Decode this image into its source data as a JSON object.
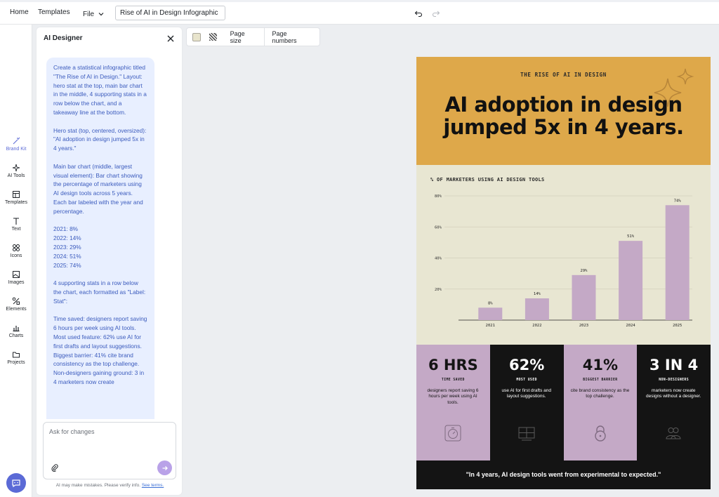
{
  "topbar": {
    "home": "Home",
    "templates": "Templates",
    "file": "File",
    "doc_title": "Rise of AI in Design Infographic",
    "undo_icon": "undo-icon",
    "redo_icon": "redo-icon"
  },
  "rail": {
    "items": [
      {
        "label": "Brand Kit",
        "icon": "magic-wand-icon"
      },
      {
        "label": "AI Tools",
        "icon": "sparkles-icon"
      },
      {
        "label": "Templates",
        "icon": "templates-icon"
      },
      {
        "label": "Text",
        "icon": "text-icon"
      },
      {
        "label": "Icons",
        "icon": "icons-icon"
      },
      {
        "label": "Images",
        "icon": "image-icon"
      },
      {
        "label": "Elements",
        "icon": "elements-icon"
      },
      {
        "label": "Charts",
        "icon": "chart-icon"
      },
      {
        "label": "Projects",
        "icon": "folder-icon"
      }
    ]
  },
  "panel": {
    "title": "AI Designer",
    "prompt": "Create a statistical infographic titled \"The Rise of AI in Design.\" Layout: hero stat at the top, main bar chart in the middle, 4 supporting stats in a row below the chart, and a takeaway line at the bottom.\n\nHero stat (top, centered, oversized): \"AI adoption in design jumped 5x in 4 years.\"\n\nMain bar chart (middle, largest visual element): Bar chart showing the percentage of marketers using AI design tools across 5 years. Each bar labeled with the year and percentage.\n\n2021: 8%\n2022: 14%\n2023: 29%\n2024: 51%\n2025: 74%\n\n4 supporting stats in a row below the chart, each formatted as \"Label: Stat\":\n\nTime saved: designers report saving 6 hours per week using AI tools.\nMost used feature: 62% use AI for first drafts and layout suggestions.\nBiggest barrier: 41% cite brand consistency as the top challenge.\nNon-designers gaining ground: 3 in 4 marketers now create",
    "ask_placeholder": "Ask for changes",
    "disclaimer": "AI may make mistakes. Please verify info.",
    "disclaimer_link": "See terms."
  },
  "canvas_toolbar": {
    "page_size": "Page size",
    "page_numbers": "Page numbers"
  },
  "infographic": {
    "eyebrow": "THE RISE OF AI IN DESIGN",
    "headline_line1": "AI adoption in design",
    "headline_line2": "jumped 5x in 4 years.",
    "chart_title": "% OF MARKETERS USING AI DESIGN TOOLS",
    "stats": [
      {
        "big": "6 HRS",
        "label": "TIME SAVED",
        "desc": "designers report saving 6 hours per week using AI tools.",
        "icon": "timer-icon"
      },
      {
        "big": "62%",
        "label": "MOST USED",
        "desc": "use AI for first drafts and layout suggestions.",
        "icon": "layout-icon"
      },
      {
        "big": "41%",
        "label": "BIGGEST BARRIER",
        "desc": "cite brand consistency as the top challenge.",
        "icon": "lock-icon"
      },
      {
        "big": "3 IN 4",
        "label": "NON-DESIGNERS",
        "desc": "marketers now create designs without a designer.",
        "icon": "people-icon"
      }
    ],
    "takeaway": "\"In 4 years, AI design tools went from experimental to expected.\"",
    "colors": {
      "hero": "#dea84a",
      "bar": "#c4a9c6",
      "dark": "#141414",
      "bg": "#e8e6d2"
    }
  },
  "chart_data": {
    "type": "bar",
    "categories": [
      "2021",
      "2022",
      "2023",
      "2024",
      "2025"
    ],
    "values": [
      8,
      14,
      29,
      51,
      74
    ],
    "value_labels": [
      "8%",
      "14%",
      "29%",
      "51%",
      "74%"
    ],
    "title": "% OF MARKETERS USING AI DESIGN TOOLS",
    "yticks": [
      20,
      40,
      60,
      80
    ],
    "ytick_labels": [
      "20%",
      "40%",
      "60%",
      "80%"
    ],
    "ylim": [
      0,
      80
    ],
    "grid": true
  }
}
